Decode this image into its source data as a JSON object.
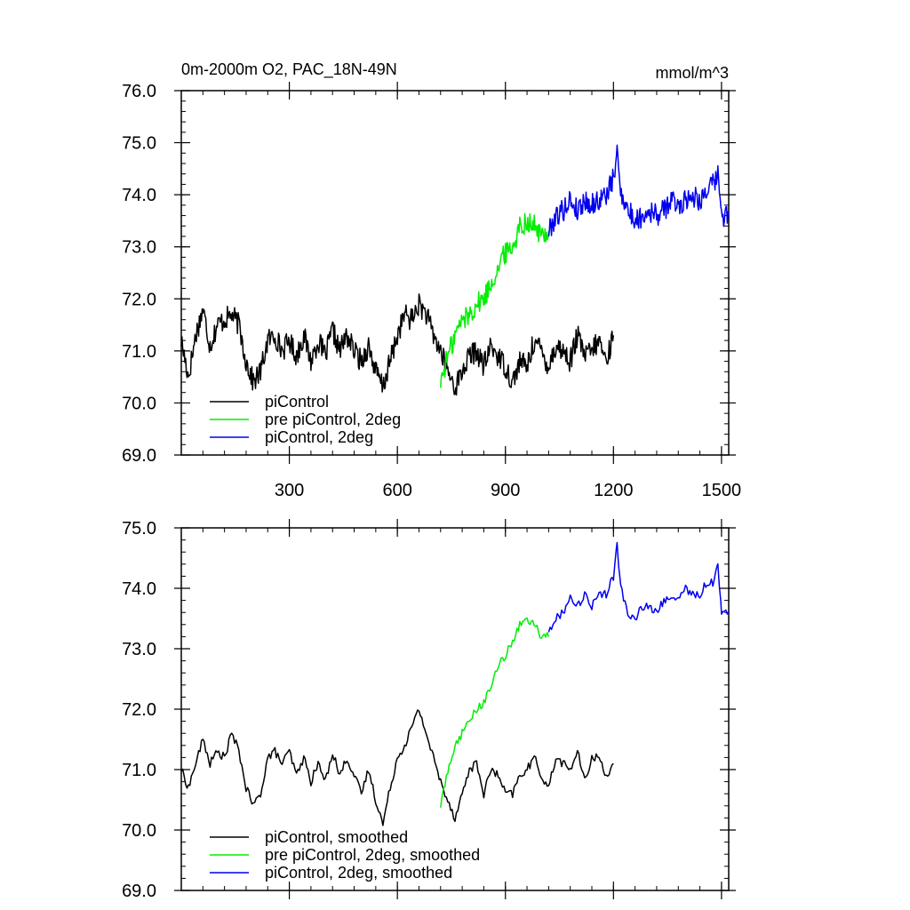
{
  "header": {
    "title": "0m-2000m O2, PAC_18N-49N",
    "units": "mmol/m^3"
  },
  "colors": {
    "piControl": "#000000",
    "pre_piControl_2deg": "#00ee00",
    "piControl_2deg": "#0000ee"
  },
  "chart_data": [
    {
      "type": "line",
      "title": "0m-2000m O2, PAC_18N-49N",
      "units": "mmol/m^3",
      "xlim": [
        0,
        1520
      ],
      "ylim": [
        69.0,
        76.0
      ],
      "x_ticks": [
        300,
        600,
        900,
        1200,
        1500
      ],
      "x_tick_labels": [
        "300",
        "600",
        "900",
        "1200",
        "1500"
      ],
      "y_ticks": [
        69.0,
        70.0,
        71.0,
        72.0,
        73.0,
        74.0,
        75.0,
        76.0
      ],
      "y_tick_labels": [
        "69.0",
        "70.0",
        "71.0",
        "72.0",
        "73.0",
        "74.0",
        "75.0",
        "76.0"
      ],
      "grid": false,
      "legend_position": "bottom-left",
      "series": [
        {
          "name": "piControl",
          "color": "#000000",
          "x": [
            0,
            20,
            40,
            60,
            80,
            100,
            120,
            140,
            160,
            180,
            200,
            220,
            240,
            260,
            280,
            300,
            320,
            340,
            360,
            380,
            400,
            420,
            440,
            460,
            480,
            500,
            520,
            540,
            560,
            580,
            600,
            620,
            640,
            660,
            680,
            700,
            720,
            740,
            760,
            780,
            800,
            820,
            840,
            860,
            880,
            900,
            920,
            940,
            960,
            980,
            1000,
            1020,
            1040,
            1060,
            1080,
            1100,
            1120,
            1140,
            1160,
            1180,
            1200
          ],
          "values": [
            71.2,
            70.5,
            71.3,
            71.8,
            71.1,
            71.5,
            71.6,
            71.7,
            71.5,
            70.8,
            70.4,
            70.6,
            71.2,
            71.3,
            71.0,
            71.2,
            70.9,
            71.3,
            70.8,
            71.2,
            70.9,
            71.4,
            71.0,
            71.3,
            71.0,
            70.8,
            71.1,
            70.6,
            70.3,
            70.8,
            71.3,
            71.7,
            71.6,
            71.9,
            71.7,
            71.3,
            71.0,
            70.6,
            70.3,
            70.6,
            70.9,
            71.0,
            70.7,
            71.1,
            70.9,
            70.7,
            70.4,
            70.8,
            70.7,
            71.2,
            71.0,
            70.7,
            71.1,
            71.0,
            70.8,
            71.3,
            70.9,
            71.0,
            71.2,
            70.8,
            71.3
          ]
        },
        {
          "name": "pre piControl, 2deg",
          "color": "#00ee00",
          "x": [
            720,
            740,
            760,
            780,
            800,
            820,
            840,
            860,
            880,
            900,
            920,
            940,
            960,
            980,
            1000,
            1020
          ],
          "values": [
            70.4,
            70.9,
            71.3,
            71.6,
            71.7,
            71.9,
            72.0,
            72.3,
            72.6,
            72.9,
            73.0,
            73.4,
            73.5,
            73.4,
            73.2,
            73.3
          ]
        },
        {
          "name": "piControl, 2deg",
          "color": "#0000ee",
          "x": [
            1020,
            1040,
            1060,
            1080,
            1100,
            1120,
            1140,
            1160,
            1180,
            1200,
            1210,
            1220,
            1240,
            1260,
            1280,
            1300,
            1320,
            1340,
            1360,
            1380,
            1400,
            1420,
            1440,
            1460,
            1480,
            1490,
            1500,
            1520
          ],
          "values": [
            73.3,
            73.6,
            73.7,
            73.9,
            73.7,
            73.9,
            73.8,
            73.9,
            74.0,
            74.3,
            74.8,
            74.1,
            73.7,
            73.5,
            73.6,
            73.7,
            73.6,
            73.7,
            73.9,
            73.8,
            73.9,
            74.0,
            73.9,
            74.1,
            74.2,
            74.4,
            73.6,
            73.6
          ]
        }
      ]
    },
    {
      "type": "line",
      "xlim": [
        0,
        1520
      ],
      "ylim": [
        69.0,
        75.0
      ],
      "x_ticks": [
        300,
        600,
        900,
        1200,
        1500
      ],
      "x_tick_labels": [],
      "y_ticks": [
        69.0,
        70.0,
        71.0,
        72.0,
        73.0,
        74.0,
        75.0
      ],
      "y_tick_labels": [
        "69.0",
        "70.0",
        "71.0",
        "72.0",
        "73.0",
        "74.0",
        "75.0"
      ],
      "grid": false,
      "legend_position": "bottom-left",
      "series": [
        {
          "name": "piControl, smoothed",
          "color": "#000000",
          "x": [
            0,
            20,
            40,
            60,
            80,
            100,
            120,
            140,
            160,
            180,
            200,
            220,
            240,
            260,
            280,
            300,
            320,
            340,
            360,
            380,
            400,
            420,
            440,
            460,
            480,
            500,
            520,
            540,
            560,
            580,
            600,
            620,
            640,
            660,
            680,
            700,
            720,
            740,
            760,
            780,
            800,
            820,
            840,
            860,
            880,
            900,
            920,
            940,
            960,
            980,
            1000,
            1020,
            1040,
            1060,
            1080,
            1100,
            1120,
            1140,
            1160,
            1180,
            1200
          ],
          "values": [
            71.0,
            70.7,
            71.1,
            71.5,
            71.1,
            71.3,
            71.2,
            71.6,
            71.3,
            70.7,
            70.4,
            70.6,
            71.2,
            71.3,
            71.1,
            71.3,
            70.9,
            71.2,
            70.8,
            71.1,
            70.8,
            71.3,
            70.9,
            71.2,
            70.9,
            70.6,
            71.0,
            70.5,
            70.1,
            70.7,
            71.2,
            71.4,
            71.7,
            72.0,
            71.6,
            71.2,
            70.8,
            70.5,
            70.2,
            70.6,
            71.0,
            71.1,
            70.6,
            71.0,
            70.9,
            70.6,
            70.6,
            70.9,
            71.0,
            71.2,
            70.9,
            70.7,
            71.2,
            71.1,
            71.0,
            71.3,
            70.8,
            71.2,
            71.2,
            70.9,
            71.1
          ]
        },
        {
          "name": "pre piControl, 2deg, smoothed",
          "color": "#00ee00",
          "x": [
            720,
            740,
            760,
            780,
            800,
            820,
            840,
            860,
            880,
            900,
            920,
            940,
            960,
            980,
            1000,
            1020
          ],
          "values": [
            70.4,
            71.0,
            71.4,
            71.6,
            71.8,
            72.0,
            72.1,
            72.4,
            72.7,
            72.9,
            73.1,
            73.4,
            73.5,
            73.4,
            73.2,
            73.2
          ]
        },
        {
          "name": "piControl, 2deg, smoothed",
          "color": "#0000ee",
          "x": [
            1020,
            1040,
            1060,
            1080,
            1100,
            1120,
            1140,
            1160,
            1180,
            1200,
            1210,
            1220,
            1240,
            1260,
            1280,
            1300,
            1320,
            1340,
            1360,
            1380,
            1400,
            1420,
            1440,
            1460,
            1480,
            1490,
            1500,
            1520
          ],
          "values": [
            73.3,
            73.5,
            73.6,
            73.9,
            73.7,
            73.9,
            73.7,
            73.9,
            73.9,
            74.2,
            74.7,
            74.0,
            73.6,
            73.5,
            73.7,
            73.7,
            73.6,
            73.8,
            73.9,
            73.8,
            74.0,
            73.9,
            73.9,
            74.1,
            74.1,
            74.4,
            73.6,
            73.6
          ]
        }
      ]
    }
  ]
}
